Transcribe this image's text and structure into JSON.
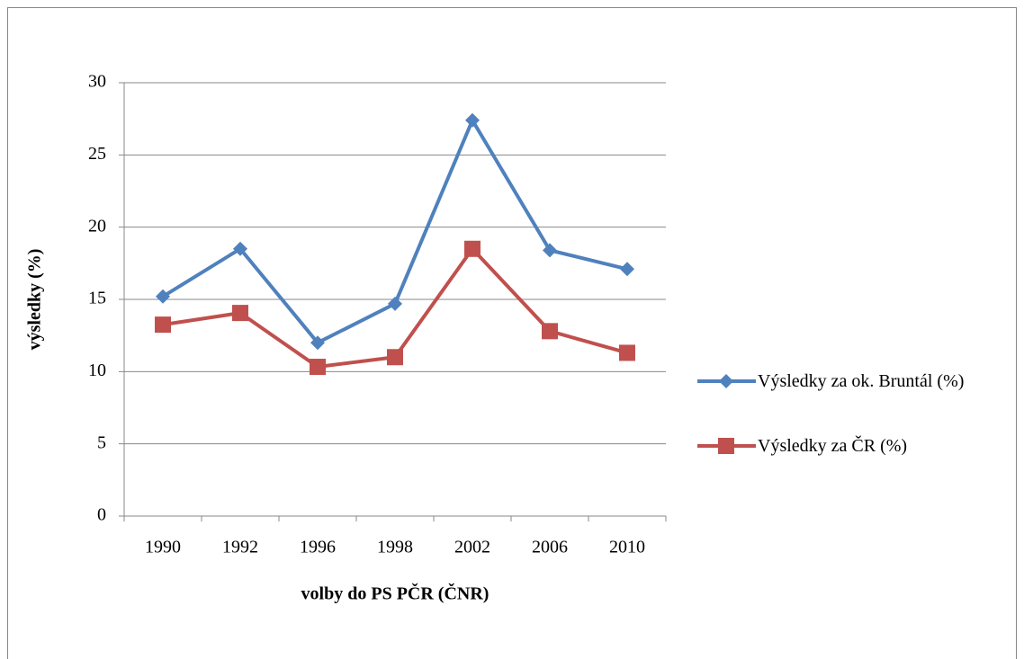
{
  "chart_data": {
    "type": "line",
    "x_label": "volby do PS PČR (ČNR)",
    "y_label": "výsledky (%)",
    "categories": [
      "1990",
      "1992",
      "1996",
      "1998",
      "2002",
      "2006",
      "2010"
    ],
    "series": [
      {
        "name": "Výsledky za ok. Bruntál (%)",
        "color": "#4f81bd",
        "marker": "diamond",
        "values": [
          15.2,
          18.5,
          12.0,
          14.7,
          27.4,
          18.4,
          17.1
        ]
      },
      {
        "name": "Výsledky za ČR (%)",
        "color": "#c0504d",
        "marker": "square",
        "values": [
          13.25,
          14.06,
          10.33,
          11.0,
          18.5,
          12.8,
          11.3
        ]
      }
    ],
    "ylim": [
      0,
      30
    ],
    "yticks": [
      0,
      5,
      10,
      15,
      20,
      25,
      30
    ],
    "grid": true,
    "legend": "right"
  }
}
